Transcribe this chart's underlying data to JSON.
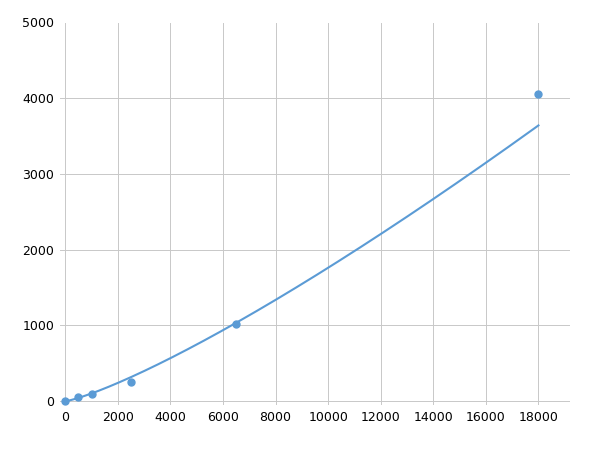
{
  "x_data": [
    0,
    500,
    1000,
    2500,
    6500,
    18000
  ],
  "y_data": [
    0,
    50,
    100,
    260,
    1020,
    4050
  ],
  "line_color": "#5b9bd5",
  "marker_color": "#5b9bd5",
  "marker_size": 5,
  "marker_style": "o",
  "line_width": 1.5,
  "xlim": [
    -200,
    19200
  ],
  "ylim": [
    -50,
    5000
  ],
  "xticks": [
    0,
    2000,
    4000,
    6000,
    8000,
    10000,
    12000,
    14000,
    16000,
    18000
  ],
  "yticks": [
    0,
    1000,
    2000,
    3000,
    4000,
    5000
  ],
  "grid": true,
  "background_color": "#ffffff",
  "grid_color": "#c8c8c8"
}
